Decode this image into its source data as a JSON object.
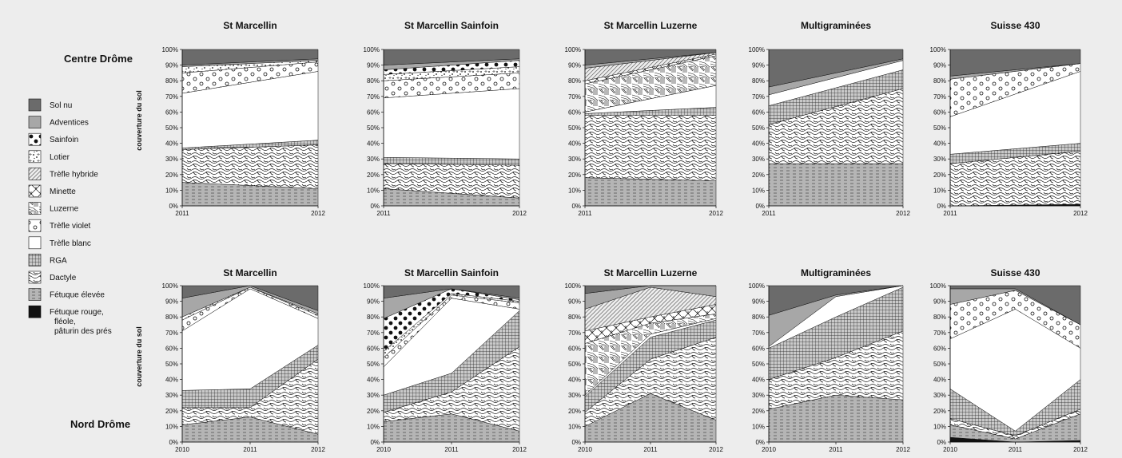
{
  "regions": [
    "Centre Drôme",
    "Nord Drôme"
  ],
  "ylabel": "couverture du sol",
  "legend": [
    {
      "key": "sol",
      "label": "Sol nu"
    },
    {
      "key": "adv",
      "label": "Adventices"
    },
    {
      "key": "sai",
      "label": "Sainfoin"
    },
    {
      "key": "lot",
      "label": "Lotier"
    },
    {
      "key": "thy",
      "label": "Trèfle hybride"
    },
    {
      "key": "min",
      "label": "Minette"
    },
    {
      "key": "luz",
      "label": "Luzerne"
    },
    {
      "key": "tvi",
      "label": "Trèfle violet"
    },
    {
      "key": "tbl",
      "label": "Trèfle blanc"
    },
    {
      "key": "rga",
      "label": "RGA"
    },
    {
      "key": "dac",
      "label": "Dactyle"
    },
    {
      "key": "fel",
      "label": "Fétuque élevée"
    },
    {
      "key": "fro",
      "label": "Fétuque rouge,\nfléole,\npâturin des prés"
    }
  ],
  "chart_data": [
    {
      "type": "area",
      "region": "Centre Drôme",
      "title": "St Marcellin",
      "x": [
        "2011",
        "2012"
      ],
      "ylim": [
        0,
        100
      ],
      "series": [
        {
          "name": "Fétuque élevée",
          "values": [
            15,
            11
          ]
        },
        {
          "name": "Dactyle",
          "values": [
            21,
            28
          ]
        },
        {
          "name": "RGA",
          "values": [
            1,
            3
          ]
        },
        {
          "name": "Trèfle blanc",
          "values": [
            35,
            44
          ]
        },
        {
          "name": "Trèfle violet",
          "values": [
            13,
            6
          ]
        },
        {
          "name": "Lotier",
          "values": [
            4,
            1
          ]
        },
        {
          "name": "Adventices",
          "values": [
            1,
            1
          ]
        },
        {
          "name": "Sol nu",
          "values": [
            10,
            6
          ]
        }
      ]
    },
    {
      "type": "area",
      "region": "Centre Drôme",
      "title": "St Marcellin Sainfoin",
      "x": [
        "2011",
        "2012"
      ],
      "ylim": [
        0,
        100
      ],
      "series": [
        {
          "name": "Fétuque élevée",
          "values": [
            11,
            5
          ]
        },
        {
          "name": "Dactyle",
          "values": [
            16,
            21
          ]
        },
        {
          "name": "RGA",
          "values": [
            4,
            4
          ]
        },
        {
          "name": "Trèfle blanc",
          "values": [
            38,
            45
          ]
        },
        {
          "name": "Trèfle violet",
          "values": [
            11,
            10
          ]
        },
        {
          "name": "Lotier",
          "values": [
            4,
            4
          ]
        },
        {
          "name": "Sainfoin",
          "values": [
            3,
            4
          ]
        },
        {
          "name": "Adventices",
          "values": [
            3,
            1
          ]
        },
        {
          "name": "Sol nu",
          "values": [
            10,
            6
          ]
        }
      ]
    },
    {
      "type": "area",
      "region": "Centre Drôme",
      "title": "St Marcellin Luzerne",
      "x": [
        "2011",
        "2012"
      ],
      "ylim": [
        0,
        100
      ],
      "series": [
        {
          "name": "Fétuque élevée",
          "values": [
            18,
            16
          ]
        },
        {
          "name": "Dactyle",
          "values": [
            40,
            42
          ]
        },
        {
          "name": "RGA",
          "values": [
            1,
            5
          ]
        },
        {
          "name": "Trèfle blanc",
          "values": [
            1,
            14
          ]
        },
        {
          "name": "Luzerne",
          "values": [
            18,
            19
          ]
        },
        {
          "name": "Minette",
          "values": [
            2,
            1
          ]
        },
        {
          "name": "Trèfle hybride",
          "values": [
            8,
            1
          ]
        },
        {
          "name": "Adventices",
          "values": [
            2,
            0
          ]
        },
        {
          "name": "Sol nu",
          "values": [
            10,
            2
          ]
        }
      ]
    },
    {
      "type": "area",
      "region": "Centre Drôme",
      "title": "Multigraminées",
      "x": [
        "2011",
        "2012"
      ],
      "ylim": [
        0,
        100
      ],
      "series": [
        {
          "name": "Fétuque élevée",
          "values": [
            27,
            27
          ]
        },
        {
          "name": "Dactyle",
          "values": [
            25,
            48
          ]
        },
        {
          "name": "RGA",
          "values": [
            12,
            12
          ]
        },
        {
          "name": "Trèfle blanc",
          "values": [
            7,
            6
          ]
        },
        {
          "name": "Adventices",
          "values": [
            5,
            1
          ]
        },
        {
          "name": "Sol nu",
          "values": [
            24,
            6
          ]
        }
      ]
    },
    {
      "type": "area",
      "region": "Centre Drôme",
      "title": "Suisse 430",
      "x": [
        "2011",
        "2012"
      ],
      "ylim": [
        0,
        100
      ],
      "series": [
        {
          "name": "Fétuque rouge, fléole, pâturin des prés",
          "values": [
            0,
            1
          ]
        },
        {
          "name": "Fétuque élevée",
          "values": [
            0,
            0
          ]
        },
        {
          "name": "Dactyle",
          "values": [
            27,
            34
          ]
        },
        {
          "name": "RGA",
          "values": [
            6,
            5
          ]
        },
        {
          "name": "Trèfle blanc",
          "values": [
            24,
            46
          ]
        },
        {
          "name": "Trèfle violet",
          "values": [
            24,
            5
          ]
        },
        {
          "name": "Adventices",
          "values": [
            2,
            0
          ]
        },
        {
          "name": "Sol nu",
          "values": [
            17,
            9
          ]
        }
      ]
    },
    {
      "type": "area",
      "region": "Nord Drôme",
      "title": "St Marcellin",
      "x": [
        "2010",
        "2011",
        "2012"
      ],
      "ylim": [
        0,
        100
      ],
      "series": [
        {
          "name": "Fétuque élevée",
          "values": [
            11,
            16,
            5
          ]
        },
        {
          "name": "Dactyle",
          "values": [
            11,
            6,
            48
          ]
        },
        {
          "name": "RGA",
          "values": [
            11,
            12,
            9
          ]
        },
        {
          "name": "Trèfle blanc",
          "values": [
            38,
            64,
            17
          ]
        },
        {
          "name": "Trèfle violet",
          "values": [
            7,
            1,
            2
          ]
        },
        {
          "name": "Lotier",
          "values": [
            2,
            0,
            1
          ]
        },
        {
          "name": "Adventices",
          "values": [
            12,
            1,
            2
          ]
        },
        {
          "name": "Sol nu",
          "values": [
            8,
            0,
            16
          ]
        }
      ]
    },
    {
      "type": "area",
      "region": "Nord Drôme",
      "title": "St Marcellin Sainfoin",
      "x": [
        "2010",
        "2011",
        "2012"
      ],
      "ylim": [
        0,
        100
      ],
      "series": [
        {
          "name": "Fétuque élevée",
          "values": [
            13,
            18,
            7
          ]
        },
        {
          "name": "Dactyle",
          "values": [
            6,
            14,
            54
          ]
        },
        {
          "name": "RGA",
          "values": [
            11,
            12,
            23
          ]
        },
        {
          "name": "Trèfle blanc",
          "values": [
            18,
            48,
            1
          ]
        },
        {
          "name": "Trèfle violet",
          "values": [
            6,
            2,
            4
          ]
        },
        {
          "name": "Lotier",
          "values": [
            4,
            1,
            1
          ]
        },
        {
          "name": "Sainfoin",
          "values": [
            21,
            3,
            1
          ]
        },
        {
          "name": "Adventices",
          "values": [
            13,
            0,
            1
          ]
        },
        {
          "name": "Sol nu",
          "values": [
            8,
            2,
            8
          ]
        }
      ]
    },
    {
      "type": "area",
      "region": "Nord Drôme",
      "title": "St Marcellin Luzerne",
      "x": [
        "2010",
        "2011",
        "2012"
      ],
      "ylim": [
        0,
        100
      ],
      "series": [
        {
          "name": "Fétuque élevée",
          "values": [
            10,
            31,
            14
          ]
        },
        {
          "name": "Dactyle",
          "values": [
            9,
            22,
            53
          ]
        },
        {
          "name": "RGA",
          "values": [
            10,
            14,
            11
          ]
        },
        {
          "name": "Trèfle blanc",
          "values": [
            1,
            2,
            1
          ]
        },
        {
          "name": "Luzerne",
          "values": [
            33,
            7,
            3
          ]
        },
        {
          "name": "Minette",
          "values": [
            8,
            4,
            6
          ]
        },
        {
          "name": "Trèfle hybride",
          "values": [
            14,
            19,
            5
          ]
        },
        {
          "name": "Adventices",
          "values": [
            10,
            1,
            7
          ]
        },
        {
          "name": "Sol nu",
          "values": [
            5,
            0,
            0
          ]
        }
      ]
    },
    {
      "type": "area",
      "region": "Nord Drôme",
      "title": "Multigraminées",
      "x": [
        "2010",
        "2011",
        "2012"
      ],
      "ylim": [
        0,
        100
      ],
      "series": [
        {
          "name": "Fétuque élevée",
          "values": [
            21,
            30,
            27
          ]
        },
        {
          "name": "Dactyle",
          "values": [
            19,
            24,
            44
          ]
        },
        {
          "name": "RGA",
          "values": [
            20,
            26,
            28
          ]
        },
        {
          "name": "Trèfle blanc",
          "values": [
            1,
            13,
            1
          ]
        },
        {
          "name": "Adventices",
          "values": [
            20,
            1,
            0
          ]
        },
        {
          "name": "Sol nu",
          "values": [
            19,
            6,
            0
          ]
        }
      ]
    },
    {
      "type": "area",
      "region": "Nord Drôme",
      "title": "Suisse 430",
      "x": [
        "2010",
        "2011",
        "2012"
      ],
      "ylim": [
        0,
        100
      ],
      "series": [
        {
          "name": "Fétuque rouge, fléole, pâturin des prés",
          "values": [
            3,
            0,
            1
          ]
        },
        {
          "name": "Fétuque élevée",
          "values": [
            8,
            2,
            17
          ]
        },
        {
          "name": "Dactyle",
          "values": [
            4,
            2,
            3
          ]
        },
        {
          "name": "RGA",
          "values": [
            19,
            3,
            19
          ]
        },
        {
          "name": "Trèfle blanc",
          "values": [
            32,
            78,
            20
          ]
        },
        {
          "name": "Trèfle violet",
          "values": [
            22,
            12,
            15
          ]
        },
        {
          "name": "Adventices",
          "values": [
            10,
            1,
            0
          ]
        },
        {
          "name": "Sol nu",
          "values": [
            2,
            2,
            25
          ]
        }
      ]
    }
  ]
}
